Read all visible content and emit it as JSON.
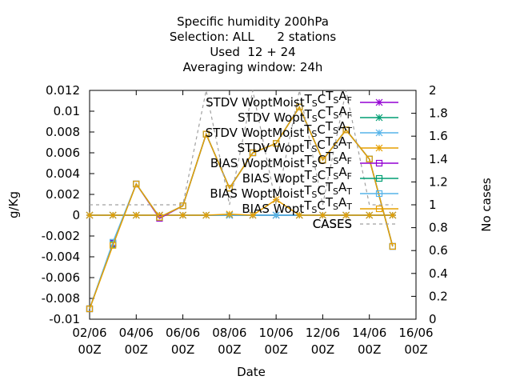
{
  "chart_data": {
    "type": "line",
    "title_lines": [
      "Specific humidity 200hPa",
      "Selection: ALL      2 stations",
      "Used  12 + 24",
      "Averaging window: 24h"
    ],
    "xlabel": "Date",
    "ylabel": "g/Kg",
    "y2label": "No cases",
    "x_tick_labels": [
      [
        "02/06",
        "00Z"
      ],
      [
        "04/06",
        "00Z"
      ],
      [
        "06/06",
        "00Z"
      ],
      [
        "08/06",
        "00Z"
      ],
      [
        "10/06",
        "00Z"
      ],
      [
        "12/06",
        "00Z"
      ],
      [
        "14/06",
        "00Z"
      ],
      [
        "16/06",
        "00Z"
      ]
    ],
    "y_ticks": [
      "-0.01",
      "-0.008",
      "-0.006",
      "-0.004",
      "-0.002",
      "0",
      "0.002",
      "0.004",
      "0.006",
      "0.008",
      "0.01",
      "0.012"
    ],
    "y2_ticks": [
      "0",
      "0.2",
      "0.4",
      "0.6",
      "0.8",
      "1",
      "1.2",
      "1.4",
      "1.6",
      "1.8",
      "2"
    ],
    "ylim": [
      -0.01,
      0.012
    ],
    "y2lim": [
      0,
      2
    ],
    "xlim_days": [
      0,
      14
    ],
    "x_day": [
      0,
      1,
      2,
      3,
      4,
      5,
      6,
      7,
      8,
      9,
      10,
      11,
      12,
      13
    ],
    "series": [
      {
        "name": "STDV WoptMoist",
        "sub": "TSCTSAF",
        "color": "#9400d3",
        "marker": "star",
        "axis": "y1",
        "values": [
          0,
          0,
          0,
          0,
          0,
          0,
          0,
          0,
          0,
          0,
          0,
          0,
          0,
          0
        ]
      },
      {
        "name": "STDV Wopt",
        "sub": "TSCTSAF",
        "color": "#009e73",
        "marker": "star",
        "axis": "y1",
        "values": [
          0,
          0,
          0,
          0,
          0,
          0,
          0,
          0,
          0,
          0,
          0,
          0,
          0,
          0
        ]
      },
      {
        "name": "STDV WoptMoist",
        "sub": "TSCTSAT",
        "color": "#56b4e9",
        "marker": "star",
        "axis": "y1",
        "values": [
          0,
          0,
          0,
          0,
          0,
          0,
          0,
          0,
          0,
          0,
          0,
          0,
          0,
          0
        ]
      },
      {
        "name": "STDV Wopt",
        "sub": "TSCTSAT",
        "color": "#e69f00",
        "marker": "star",
        "axis": "y1",
        "values": [
          0,
          0,
          0,
          0,
          0,
          0,
          0.0001,
          0,
          0.0015,
          0,
          0,
          0,
          0,
          0
        ]
      },
      {
        "name": "BIAS WoptMoist",
        "sub": "TSCTSAF",
        "color": "#9400d3",
        "marker": "square",
        "axis": "y1",
        "values": [
          -0.009,
          -0.0027,
          0.003,
          -0.0003,
          0.0009,
          0.0078,
          0.0026,
          0.006,
          0.0069,
          0.0104,
          0.0053,
          0.0082,
          0.0054,
          -0.003
        ]
      },
      {
        "name": "BIAS Wopt",
        "sub": "TSCTSAF",
        "color": "#009e73",
        "marker": "square",
        "axis": "y1",
        "values": [
          -0.009,
          -0.0028,
          0.003,
          -0.0002,
          0.0009,
          0.0078,
          0.0026,
          0.006,
          0.0069,
          0.0104,
          0.0053,
          0.0082,
          0.0054,
          -0.003
        ]
      },
      {
        "name": "BIAS WoptMoist",
        "sub": "TSCTSAT",
        "color": "#56b4e9",
        "marker": "square",
        "axis": "y1",
        "values": [
          -0.009,
          -0.0026,
          0.003,
          -0.0002,
          0.0009,
          0.0078,
          0.0026,
          0.006,
          0.0069,
          0.0104,
          0.0053,
          0.0082,
          0.0054,
          -0.003
        ]
      },
      {
        "name": "BIAS Wopt",
        "sub": "TSCTSAT",
        "color": "#e69f00",
        "marker": "square",
        "axis": "y1",
        "values": [
          -0.009,
          -0.0029,
          0.003,
          -0.0002,
          0.0009,
          0.0078,
          0.0026,
          0.006,
          0.0069,
          0.0104,
          0.0053,
          0.0082,
          0.0054,
          -0.003
        ]
      },
      {
        "name": "CASES",
        "sub": "",
        "color": "#a0a0a0",
        "marker": "none",
        "dashed": true,
        "axis": "y2",
        "values": [
          1,
          1,
          1,
          1,
          1,
          2,
          1,
          2,
          1,
          2,
          1,
          2,
          1,
          1
        ]
      }
    ]
  }
}
